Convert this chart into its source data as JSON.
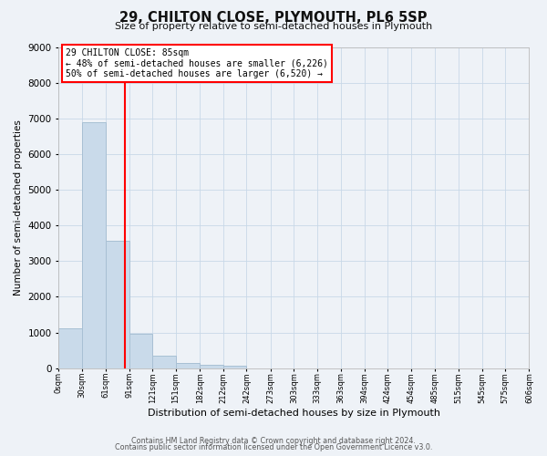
{
  "title": "29, CHILTON CLOSE, PLYMOUTH, PL6 5SP",
  "subtitle": "Size of property relative to semi-detached houses in Plymouth",
  "xlabel": "Distribution of semi-detached houses by size in Plymouth",
  "ylabel": "Number of semi-detached properties",
  "bar_left_edges": [
    0,
    30,
    61,
    91,
    121,
    151,
    182,
    212,
    242,
    273,
    303,
    333,
    363,
    394,
    424,
    454,
    485,
    515,
    545,
    575
  ],
  "bar_widths": [
    30,
    31,
    30,
    30,
    30,
    31,
    30,
    30,
    31,
    30,
    30,
    30,
    31,
    30,
    30,
    31,
    30,
    30,
    30,
    31
  ],
  "bar_heights": [
    1130,
    6890,
    3560,
    975,
    340,
    150,
    100,
    75,
    0,
    0,
    0,
    0,
    0,
    0,
    0,
    0,
    0,
    0,
    0,
    0
  ],
  "bar_color": "#c9daea",
  "bar_edgecolor": "#a8c0d4",
  "property_line_x": 85,
  "property_line_color": "red",
  "ylim": [
    0,
    9000
  ],
  "yticks": [
    0,
    1000,
    2000,
    3000,
    4000,
    5000,
    6000,
    7000,
    8000,
    9000
  ],
  "xtick_labels": [
    "0sqm",
    "30sqm",
    "61sqm",
    "91sqm",
    "121sqm",
    "151sqm",
    "182sqm",
    "212sqm",
    "242sqm",
    "273sqm",
    "303sqm",
    "333sqm",
    "363sqm",
    "394sqm",
    "424sqm",
    "454sqm",
    "485sqm",
    "515sqm",
    "545sqm",
    "575sqm",
    "606sqm"
  ],
  "annotation_title": "29 CHILTON CLOSE: 85sqm",
  "annotation_line1": "← 48% of semi-detached houses are smaller (6,226)",
  "annotation_line2": "50% of semi-detached houses are larger (6,520) →",
  "annotation_box_color": "#ffffff",
  "annotation_box_edgecolor": "red",
  "grid_color": "#c8d8e8",
  "footer_line1": "Contains HM Land Registry data © Crown copyright and database right 2024.",
  "footer_line2": "Contains public sector information licensed under the Open Government Licence v3.0.",
  "background_color": "#eef2f7",
  "title_fontsize": 10.5,
  "subtitle_fontsize": 8,
  "ylabel_fontsize": 7.5,
  "xlabel_fontsize": 8,
  "ytick_fontsize": 7.5,
  "xtick_fontsize": 6
}
